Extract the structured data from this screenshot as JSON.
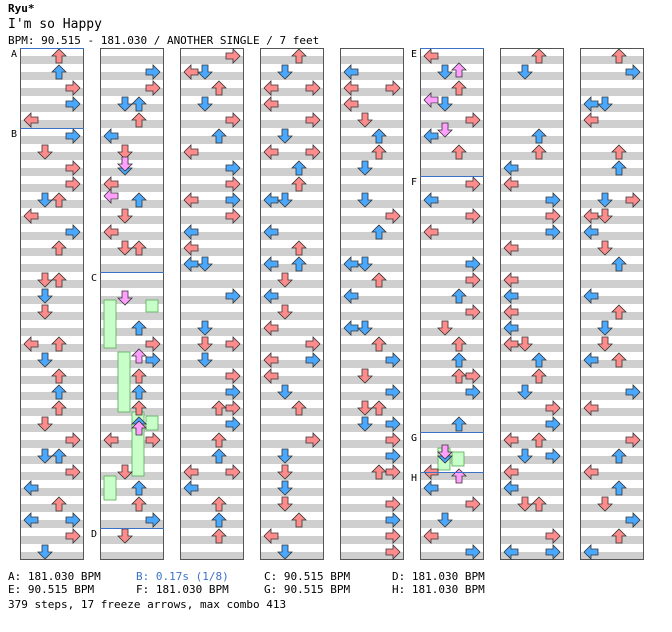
{
  "chart_info": {
    "artist": "Ryu*",
    "title": "I'm so Happy",
    "info": "BPM: 90.515 - 181.030 / ANOTHER SINGLE / 7 feet"
  },
  "colors": {
    "red": "#ff8c8c",
    "blue": "#4aa8ff",
    "pink": "#ffa0ff",
    "freeze": "#c8ffc8",
    "stripe": "#cfcfcf",
    "marker": "#3b72c8"
  },
  "markers": {
    "A": "A",
    "B": "B",
    "C": "C",
    "D": "D",
    "E": "E",
    "F": "F",
    "G": "G",
    "H": "H"
  },
  "legend": [
    {
      "key": "A",
      "text": "A: 181.030 BPM",
      "highlight": false
    },
    {
      "key": "B",
      "text": "B: 0.17s (1/8)",
      "highlight": true
    },
    {
      "key": "C",
      "text": "C: 90.515 BPM",
      "highlight": false
    },
    {
      "key": "D",
      "text": "D: 181.030 BPM",
      "highlight": false
    },
    {
      "key": "E",
      "text": "E: 90.515 BPM",
      "highlight": false
    },
    {
      "key": "F",
      "text": "F: 181.030 BPM",
      "highlight": false
    },
    {
      "key": "G",
      "text": "G: 90.515 BPM",
      "highlight": false
    },
    {
      "key": "H",
      "text": "H: 181.030 BPM",
      "highlight": false
    }
  ],
  "summary": "379 steps, 17 freeze arrows, max combo 413",
  "arrow_types": [
    "left-arrow",
    "down-arrow",
    "up-arrow",
    "right-arrow"
  ]
}
